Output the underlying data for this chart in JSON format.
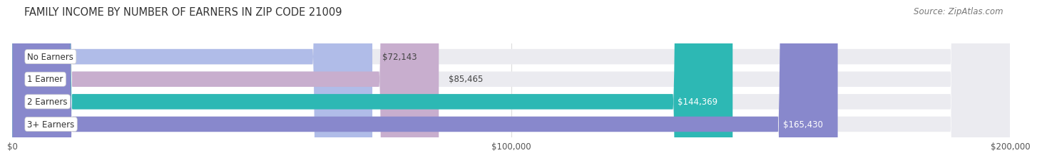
{
  "title": "FAMILY INCOME BY NUMBER OF EARNERS IN ZIP CODE 21009",
  "source": "Source: ZipAtlas.com",
  "categories": [
    "No Earners",
    "1 Earner",
    "2 Earners",
    "3+ Earners"
  ],
  "values": [
    72143,
    85465,
    144369,
    165430
  ],
  "bar_colors": [
    "#b0bce8",
    "#c8aece",
    "#2db8b4",
    "#8888cc"
  ],
  "value_labels": [
    "$72,143",
    "$85,465",
    "$144,369",
    "$165,430"
  ],
  "value_inside": [
    false,
    false,
    true,
    true
  ],
  "xlim": [
    0,
    200000
  ],
  "xticks": [
    0,
    100000,
    200000
  ],
  "xticklabels": [
    "$0",
    "$100,000",
    "$200,000"
  ],
  "background_color": "#ffffff",
  "bar_bg_color": "#ebebf0",
  "title_fontsize": 10.5,
  "source_fontsize": 8.5,
  "label_fontsize": 8.5,
  "value_fontsize": 8.5
}
